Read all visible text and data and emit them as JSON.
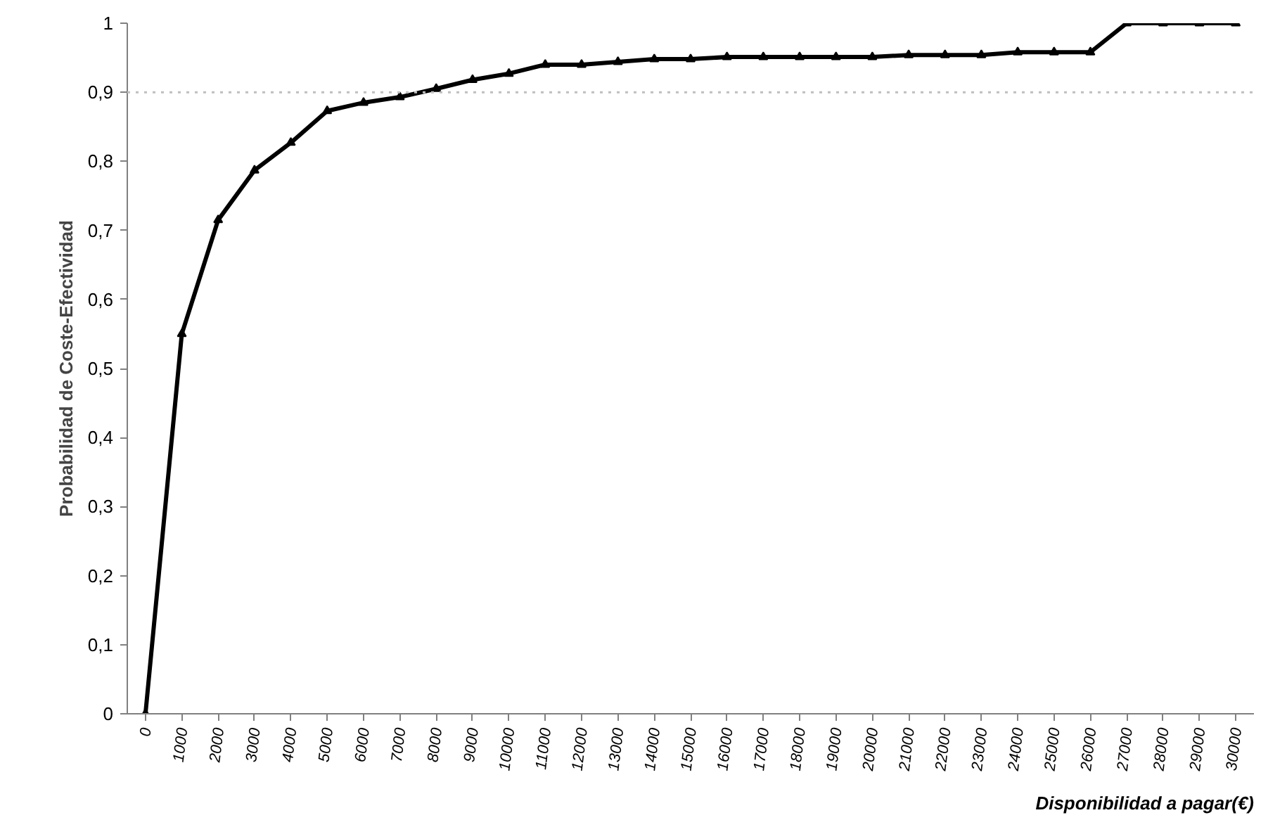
{
  "chart_data": {
    "type": "line",
    "xlabel": "Disponibilidad a pagar(€)",
    "ylabel": "Probabilidad de Coste-Efectividad",
    "categories": [
      "0",
      "1000",
      "2000",
      "3000",
      "4000",
      "5000",
      "6000",
      "7000",
      "8000",
      "9000",
      "10000",
      "11000",
      "12000",
      "13000",
      "14000",
      "15000",
      "16000",
      "17000",
      "18000",
      "19000",
      "20000",
      "21000",
      "22000",
      "23000",
      "24000",
      "25000",
      "26000",
      "27000",
      "28000",
      "29000",
      "30000"
    ],
    "series": [
      {
        "color": "#000000",
        "values": [
          0,
          0.55,
          0.715,
          0.787,
          0.827,
          0.873,
          0.885,
          0.893,
          0.905,
          0.918,
          0.927,
          0.94,
          0.94,
          0.944,
          0.948,
          0.948,
          0.951,
          0.951,
          0.951,
          0.951,
          0.951,
          0.954,
          0.954,
          0.954,
          0.958,
          0.958,
          0.958,
          1,
          1,
          1,
          1
        ]
      }
    ],
    "ylim": [
      0,
      1
    ],
    "yticks": [
      0,
      {
        "value": 0.1,
        "label": "0,1"
      },
      {
        "value": 0.2,
        "label": "0,2"
      },
      {
        "value": 0.3,
        "label": "0,3"
      },
      {
        "value": 0.4,
        "label": "0,4"
      },
      {
        "value": 0.5,
        "label": "0,5"
      },
      {
        "value": 0.6,
        "label": "0,6"
      },
      {
        "value": 0.7,
        "label": "0,7"
      },
      {
        "value": 0.8,
        "label": "0,8"
      },
      {
        "value": 0.9,
        "label": "0,9"
      },
      1
    ],
    "ref_lines": [
      {
        "axis": "y",
        "value": 0.9,
        "color": "#bfbfbf",
        "line_style": "dotted"
      }
    ],
    "marker": "triangle",
    "line_style": "solid"
  }
}
